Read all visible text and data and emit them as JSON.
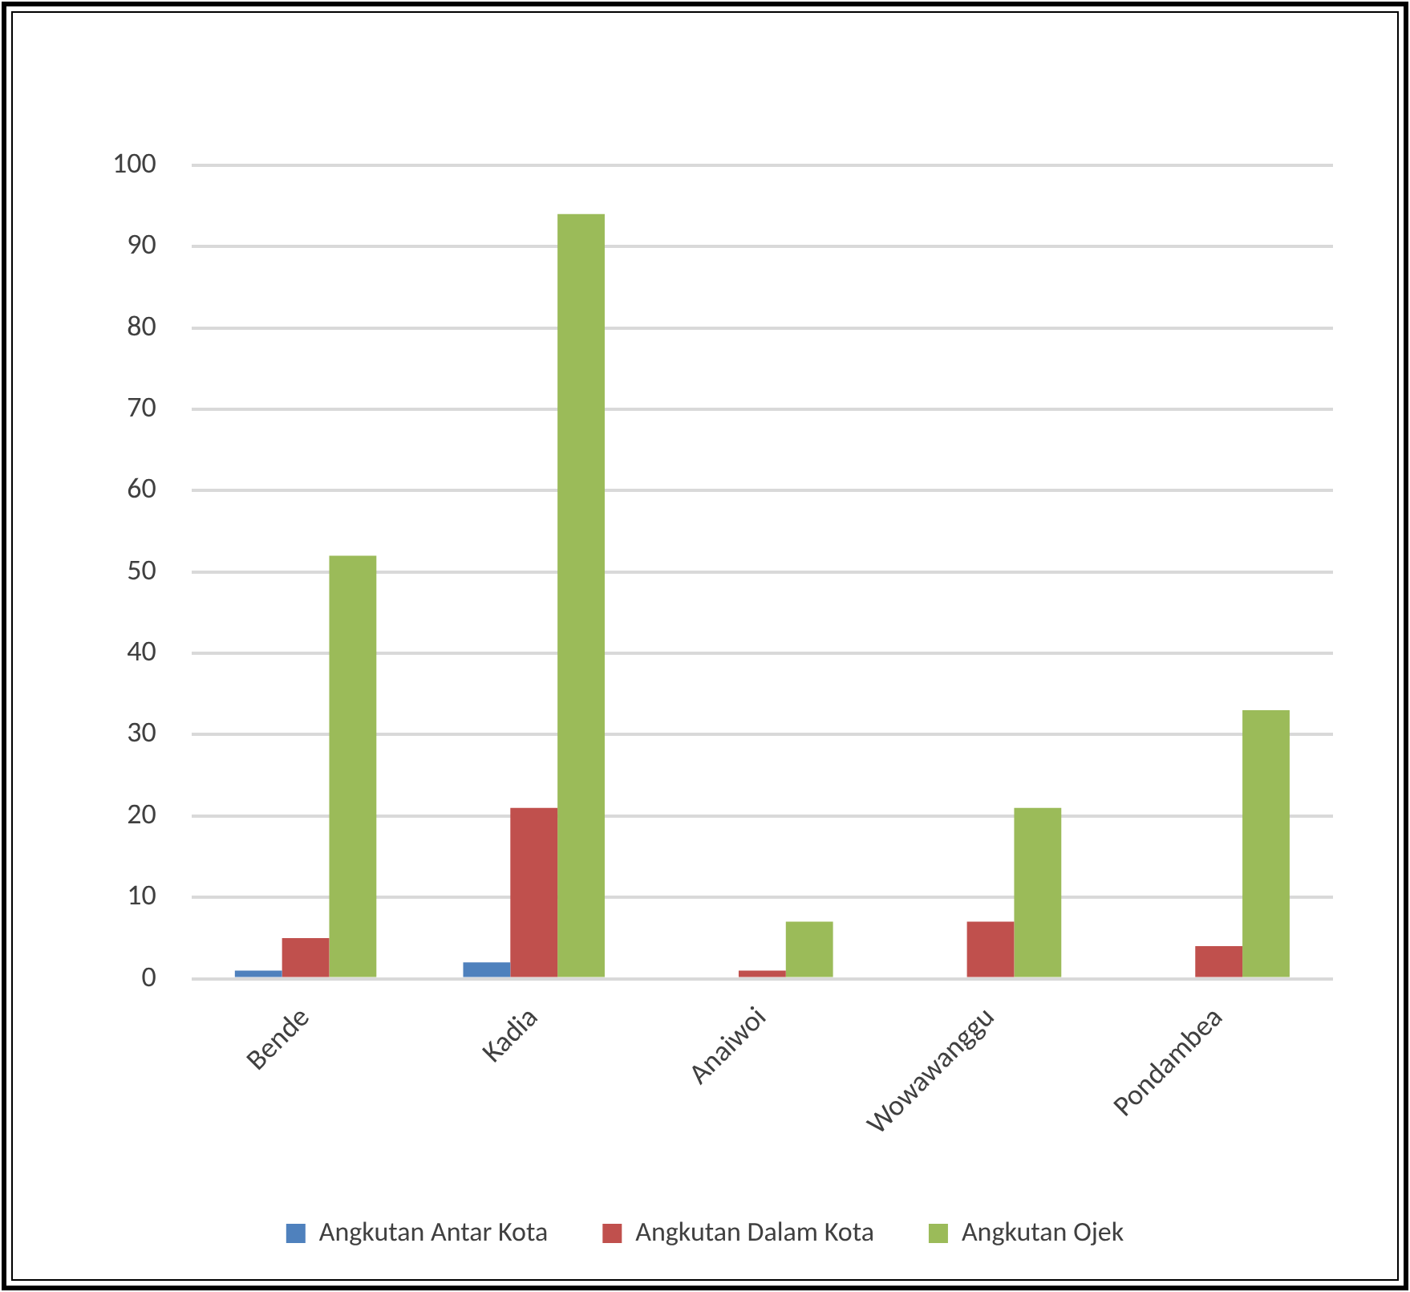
{
  "chart_data": {
    "type": "bar",
    "categories": [
      "Bende",
      "Kadia",
      "Anaiwoi",
      "Wowawanggu",
      "Pondambea"
    ],
    "series": [
      {
        "name": "Angkutan Antar Kota",
        "color": "#4f81bd",
        "values": [
          1,
          2,
          0,
          0,
          0
        ]
      },
      {
        "name": "Angkutan Dalam Kota",
        "color": "#c0504d",
        "values": [
          5,
          21,
          1,
          7,
          4
        ]
      },
      {
        "name": "Angkutan Ojek",
        "color": "#9bbb59",
        "values": [
          52,
          94,
          7,
          21,
          33
        ]
      }
    ],
    "ylim": [
      0,
      100
    ],
    "yticks": [
      0,
      10,
      20,
      30,
      40,
      50,
      60,
      70,
      80,
      90,
      100
    ],
    "grid": "y",
    "legend": "bottom"
  }
}
